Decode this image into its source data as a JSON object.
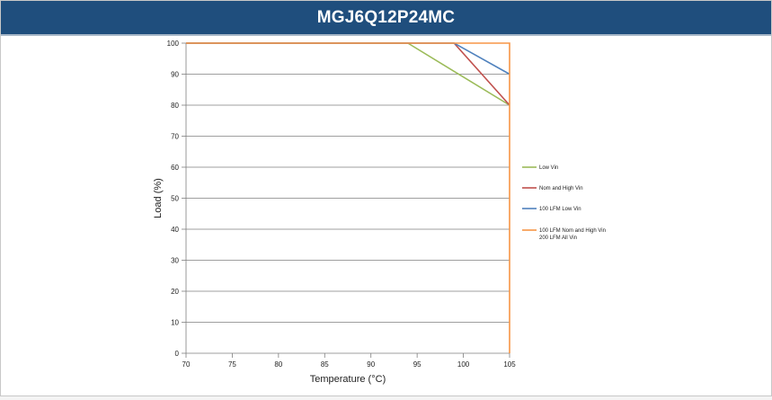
{
  "header": {
    "title": "MGJ6Q12P24MC"
  },
  "colors": {
    "title_bar": "#1f4e7d",
    "gridline": "#7f7f7f"
  },
  "chart_data": {
    "type": "line",
    "title": "",
    "xlabel": "Temperature (°C)",
    "ylabel": "Load (%)",
    "xlim": [
      70,
      105
    ],
    "ylim": [
      0,
      100
    ],
    "xticks": [
      70,
      75,
      80,
      85,
      90,
      95,
      100,
      105
    ],
    "yticks": [
      0,
      10,
      20,
      30,
      40,
      50,
      60,
      70,
      80,
      90,
      100
    ],
    "grid": "horizontal",
    "legend_position": "right",
    "series": [
      {
        "name": "Low Vin",
        "color": "#9bbb59",
        "x": [
          70,
          94,
          105
        ],
        "y": [
          100,
          100,
          80
        ]
      },
      {
        "name": "Nom and High Vin",
        "color": "#c0504d",
        "x": [
          70,
          99,
          105
        ],
        "y": [
          100,
          100,
          80
        ]
      },
      {
        "name": "100 LFM Low Vin",
        "color": "#4f81bd",
        "x": [
          70,
          99,
          105
        ],
        "y": [
          100,
          100,
          90
        ]
      },
      {
        "name": "100 LFM Nom and High Vin 200 LFM All Vin",
        "color": "#f79646",
        "x": [
          70,
          105,
          105
        ],
        "y": [
          100,
          100,
          0
        ]
      }
    ]
  }
}
